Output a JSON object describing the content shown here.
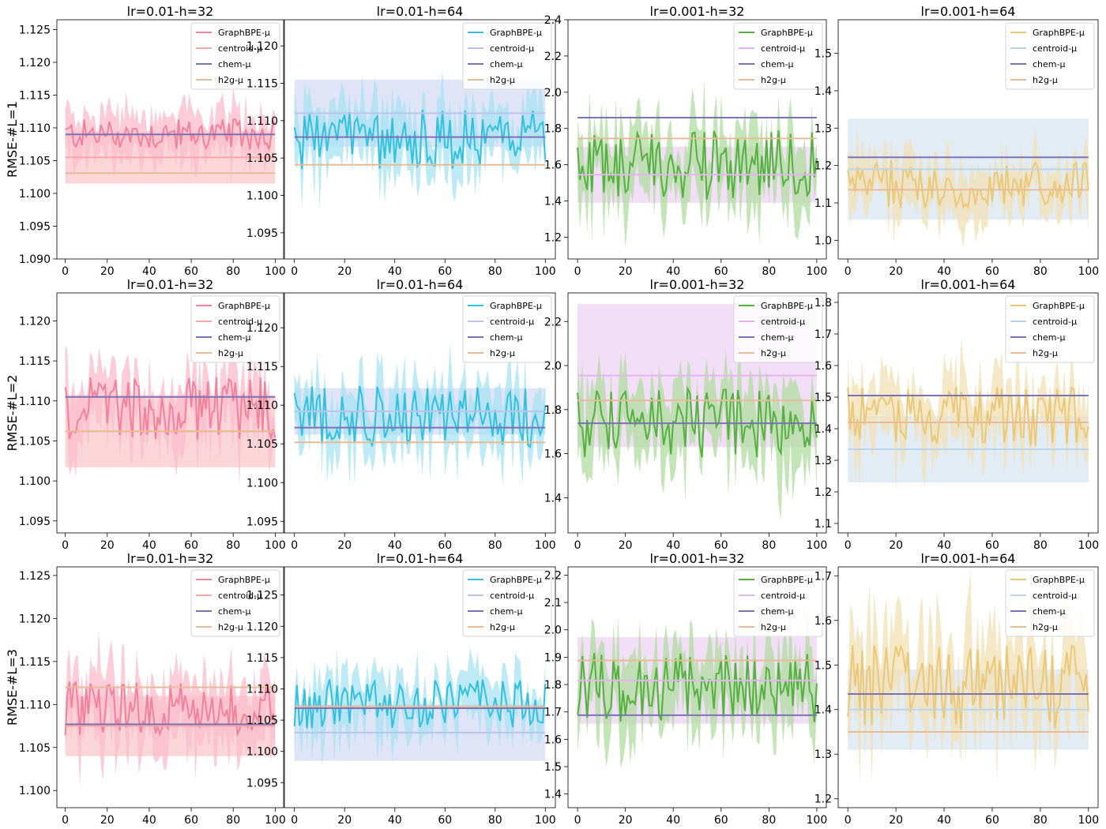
{
  "chart_data": [
    {
      "type": "line",
      "title": "lr=0.01-h=32",
      "ylabel": "RMSE-#L=1",
      "xlim": [
        -4,
        104
      ],
      "ylim": [
        1.09,
        1.1265
      ],
      "yticks": [
        "1.090",
        "1.095",
        "1.100",
        "1.105",
        "1.110",
        "1.115",
        "1.120",
        "1.125"
      ],
      "xticks": [
        "0",
        "20",
        "40",
        "60",
        "80",
        "100"
      ],
      "series": [
        {
          "name": "GraphBPE-μ",
          "center": 1.109,
          "amp": 0.0015,
          "band": 0.004,
          "color": "#f2819c",
          "fill": "#fbbccc"
        },
        {
          "name": "centroid-μ",
          "mean": 1.1055,
          "std": 0.004,
          "color": "#f6a5a8"
        },
        {
          "name": "chem-μ",
          "mean": 1.109,
          "std": 0.0,
          "color": "#7b72b5"
        },
        {
          "name": "h2g-μ",
          "mean": 1.1031,
          "std": 0.0,
          "color": "#e7bb96"
        }
      ]
    },
    {
      "type": "line",
      "title": "lr=0.01-h=64",
      "ylabel": "",
      "xlim": [
        -4,
        104
      ],
      "ylim": [
        1.0915,
        1.1235
      ],
      "yticks": [
        "1.095",
        "1.100",
        "1.105",
        "1.110",
        "1.115",
        "1.120"
      ],
      "xticks": [
        "0",
        "20",
        "40",
        "60",
        "80",
        "100"
      ],
      "series": [
        {
          "name": "GraphBPE-μ",
          "center": 1.1075,
          "amp": 0.0025,
          "band": 0.0045,
          "color": "#33c0df",
          "fill": "#a7e3f1"
        },
        {
          "name": "centroid-μ",
          "mean": 1.111,
          "std": 0.0045,
          "color": "#b9c3ec"
        },
        {
          "name": "chem-μ",
          "mean": 1.1078,
          "std": 0.0,
          "color": "#7b72b5"
        },
        {
          "name": "h2g-μ",
          "mean": 1.1041,
          "std": 0.0,
          "color": "#e7bb96"
        }
      ]
    },
    {
      "type": "line",
      "title": "lr=0.001-h=32",
      "ylabel": "",
      "xlim": [
        -4,
        104
      ],
      "ylim": [
        1.08,
        2.4
      ],
      "yticks": [
        "1.2",
        "1.4",
        "1.6",
        "1.8",
        "2.0",
        "2.2",
        "2.4"
      ],
      "xticks": [
        "0",
        "20",
        "40",
        "60",
        "80",
        "100"
      ],
      "series": [
        {
          "name": "GraphBPE-μ",
          "center": 1.6,
          "amp": 0.12,
          "band": 0.22,
          "color": "#55b040",
          "fill": "#afdca0"
        },
        {
          "name": "centroid-μ",
          "mean": 1.545,
          "std": 0.155,
          "color": "#e3b5ee"
        },
        {
          "name": "chem-μ",
          "mean": 1.86,
          "std": 0.0,
          "color": "#7b72b5"
        },
        {
          "name": "h2g-μ",
          "mean": 1.745,
          "std": 0.0,
          "color": "#e7bb96"
        }
      ]
    },
    {
      "type": "line",
      "title": "lr=0.001-h=64",
      "ylabel": "",
      "xlim": [
        -4,
        104
      ],
      "ylim": [
        0.95,
        1.59
      ],
      "yticks": [
        "1.0",
        "1.1",
        "1.2",
        "1.3",
        "1.4",
        "1.5"
      ],
      "xticks": [
        "0",
        "20",
        "40",
        "60",
        "80",
        "100"
      ],
      "series": [
        {
          "name": "GraphBPE-μ",
          "center": 1.15,
          "amp": 0.04,
          "band": 0.08,
          "color": "#eac878",
          "fill": "#f2e0b4"
        },
        {
          "name": "centroid-μ",
          "mean": 1.19,
          "std": 0.135,
          "color": "#bcd4e8"
        },
        {
          "name": "chem-μ",
          "mean": 1.222,
          "std": 0.0,
          "color": "#7b72b5"
        },
        {
          "name": "h2g-μ",
          "mean": 1.135,
          "std": 0.0,
          "color": "#e7bb96"
        }
      ]
    },
    {
      "type": "line",
      "title": "lr=0.01-h=32",
      "ylabel": "RMSE-#L=2",
      "xlim": [
        -4,
        104
      ],
      "ylim": [
        1.0935,
        1.1235
      ],
      "yticks": [
        "1.095",
        "1.100",
        "1.105",
        "1.110",
        "1.115",
        "1.120"
      ],
      "xticks": [
        "0",
        "20",
        "40",
        "60",
        "80",
        "100"
      ],
      "series": [
        {
          "name": "GraphBPE-μ",
          "center": 1.109,
          "amp": 0.0025,
          "band": 0.0045,
          "color": "#f2819c",
          "fill": "#fbbccc"
        },
        {
          "name": "centroid-μ",
          "mean": 1.1062,
          "std": 0.0045,
          "color": "#f6a5a8"
        },
        {
          "name": "chem-μ",
          "mean": 1.1105,
          "std": 0.0,
          "color": "#7b72b5"
        },
        {
          "name": "h2g-μ",
          "mean": 1.1062,
          "std": 0.0,
          "color": "#e7bb96"
        }
      ]
    },
    {
      "type": "line",
      "title": "lr=0.01-h=64",
      "ylabel": "",
      "xlim": [
        -4,
        104
      ],
      "ylim": [
        1.0935,
        1.1245
      ],
      "yticks": [
        "1.095",
        "1.100",
        "1.105",
        "1.110",
        "1.115",
        "1.120"
      ],
      "xticks": [
        "0",
        "20",
        "40",
        "60",
        "80",
        "100"
      ],
      "series": [
        {
          "name": "GraphBPE-μ",
          "center": 1.1085,
          "amp": 0.0025,
          "band": 0.0045,
          "color": "#33c0df",
          "fill": "#a7e3f1"
        },
        {
          "name": "centroid-μ",
          "mean": 1.1092,
          "std": 0.003,
          "color": "#b9c3ec"
        },
        {
          "name": "chem-μ",
          "mean": 1.1071,
          "std": 0.0,
          "color": "#7b72b5"
        },
        {
          "name": "h2g-μ",
          "mean": 1.1052,
          "std": 0.0,
          "color": "#e7bb96"
        }
      ]
    },
    {
      "type": "line",
      "title": "lr=0.001-h=32",
      "ylabel": "",
      "xlim": [
        -4,
        104
      ],
      "ylim": [
        1.24,
        2.33
      ],
      "yticks": [
        "1.4",
        "1.6",
        "1.8",
        "2.0",
        "2.2"
      ],
      "xticks": [
        "0",
        "20",
        "40",
        "60",
        "80",
        "100"
      ],
      "series": [
        {
          "name": "GraphBPE-μ",
          "center": 1.74,
          "amp": 0.1,
          "band": 0.2,
          "color": "#55b040",
          "fill": "#afdca0"
        },
        {
          "name": "centroid-μ",
          "mean": 1.955,
          "std": 0.325,
          "color": "#e3b5ee"
        },
        {
          "name": "chem-μ",
          "mean": 1.738,
          "std": 0.0,
          "color": "#7b72b5"
        },
        {
          "name": "h2g-μ",
          "mean": 1.842,
          "std": 0.0,
          "color": "#e7bb96"
        }
      ]
    },
    {
      "type": "line",
      "title": "lr=0.001-h=64",
      "ylabel": "",
      "xlim": [
        -4,
        104
      ],
      "ylim": [
        1.07,
        1.83
      ],
      "yticks": [
        "1.1",
        "1.2",
        "1.3",
        "1.4",
        "1.5",
        "1.6",
        "1.7",
        "1.8"
      ],
      "xticks": [
        "0",
        "20",
        "40",
        "60",
        "80",
        "100"
      ],
      "series": [
        {
          "name": "GraphBPE-μ",
          "center": 1.44,
          "amp": 0.06,
          "band": 0.12,
          "color": "#eac878",
          "fill": "#f2e0b4"
        },
        {
          "name": "centroid-μ",
          "mean": 1.335,
          "std": 0.105,
          "color": "#bcd4e8"
        },
        {
          "name": "chem-μ",
          "mean": 1.505,
          "std": 0.0,
          "color": "#7b72b5"
        },
        {
          "name": "h2g-μ",
          "mean": 1.42,
          "std": 0.0,
          "color": "#e7bb96"
        }
      ]
    },
    {
      "type": "line",
      "title": "lr=0.01-h=32",
      "ylabel": "RMSE-#L=3",
      "xlim": [
        -4,
        104
      ],
      "ylim": [
        1.098,
        1.126
      ],
      "yticks": [
        "1.100",
        "1.105",
        "1.110",
        "1.115",
        "1.120",
        "1.125"
      ],
      "xticks": [
        "0",
        "20",
        "40",
        "60",
        "80",
        "100"
      ],
      "series": [
        {
          "name": "GraphBPE-μ",
          "center": 1.1095,
          "amp": 0.002,
          "band": 0.0045,
          "color": "#f2819c",
          "fill": "#fbbccc"
        },
        {
          "name": "centroid-μ",
          "mean": 1.1075,
          "std": 0.0035,
          "color": "#f6a5a8"
        },
        {
          "name": "chem-μ",
          "mean": 1.1077,
          "std": 0.0,
          "color": "#7b72b5"
        },
        {
          "name": "h2g-μ",
          "mean": 1.112,
          "std": 0.0,
          "color": "#e7bb96"
        }
      ]
    },
    {
      "type": "line",
      "title": "lr=0.01-h=64",
      "ylabel": "",
      "xlim": [
        -4,
        104
      ],
      "ylim": [
        1.091,
        1.1295
      ],
      "yticks": [
        "1.095",
        "1.100",
        "1.105",
        "1.110",
        "1.115",
        "1.120",
        "1.125"
      ],
      "xticks": [
        "0",
        "20",
        "40",
        "60",
        "80",
        "100"
      ],
      "series": [
        {
          "name": "GraphBPE-μ",
          "center": 1.1075,
          "amp": 0.0025,
          "band": 0.005,
          "color": "#33c0df",
          "fill": "#a7e3f1"
        },
        {
          "name": "centroid-μ",
          "mean": 1.103,
          "std": 0.0045,
          "color": "#b9c3ec"
        },
        {
          "name": "chem-μ",
          "mean": 1.1069,
          "std": 0.0,
          "color": "#7b72b5"
        },
        {
          "name": "h2g-μ",
          "mean": 1.1072,
          "std": 0.0,
          "color": "#e7bb96"
        }
      ]
    },
    {
      "type": "line",
      "title": "lr=0.001-h=32",
      "ylabel": "",
      "xlim": [
        -4,
        104
      ],
      "ylim": [
        1.35,
        2.23
      ],
      "yticks": [
        "1.4",
        "1.5",
        "1.6",
        "1.7",
        "1.8",
        "1.9",
        "2.0",
        "2.1",
        "2.2"
      ],
      "xticks": [
        "0",
        "20",
        "40",
        "60",
        "80",
        "100"
      ],
      "series": [
        {
          "name": "GraphBPE-μ",
          "center": 1.79,
          "amp": 0.08,
          "band": 0.16,
          "color": "#55b040",
          "fill": "#afdca0"
        },
        {
          "name": "centroid-μ",
          "mean": 1.815,
          "std": 0.158,
          "color": "#e3b5ee"
        },
        {
          "name": "chem-μ",
          "mean": 1.688,
          "std": 0.0,
          "color": "#7b72b5"
        },
        {
          "name": "h2g-μ",
          "mean": 1.888,
          "std": 0.0,
          "color": "#e7bb96"
        }
      ]
    },
    {
      "type": "line",
      "title": "lr=0.001-h=64",
      "ylabel": "",
      "xlim": [
        -4,
        104
      ],
      "ylim": [
        1.18,
        1.72
      ],
      "yticks": [
        "1.2",
        "1.3",
        "1.4",
        "1.5",
        "1.6",
        "1.7"
      ],
      "xticks": [
        "0",
        "20",
        "40",
        "60",
        "80",
        "100"
      ],
      "series": [
        {
          "name": "GraphBPE-μ",
          "center": 1.45,
          "amp": 0.06,
          "band": 0.12,
          "color": "#eac878",
          "fill": "#f2e0b4"
        },
        {
          "name": "centroid-μ",
          "mean": 1.4,
          "std": 0.09,
          "color": "#bcd4e8"
        },
        {
          "name": "chem-μ",
          "mean": 1.435,
          "std": 0.0,
          "color": "#7b72b5"
        },
        {
          "name": "h2g-μ",
          "mean": 1.35,
          "std": 0.0,
          "color": "#e7bb96"
        }
      ]
    }
  ]
}
